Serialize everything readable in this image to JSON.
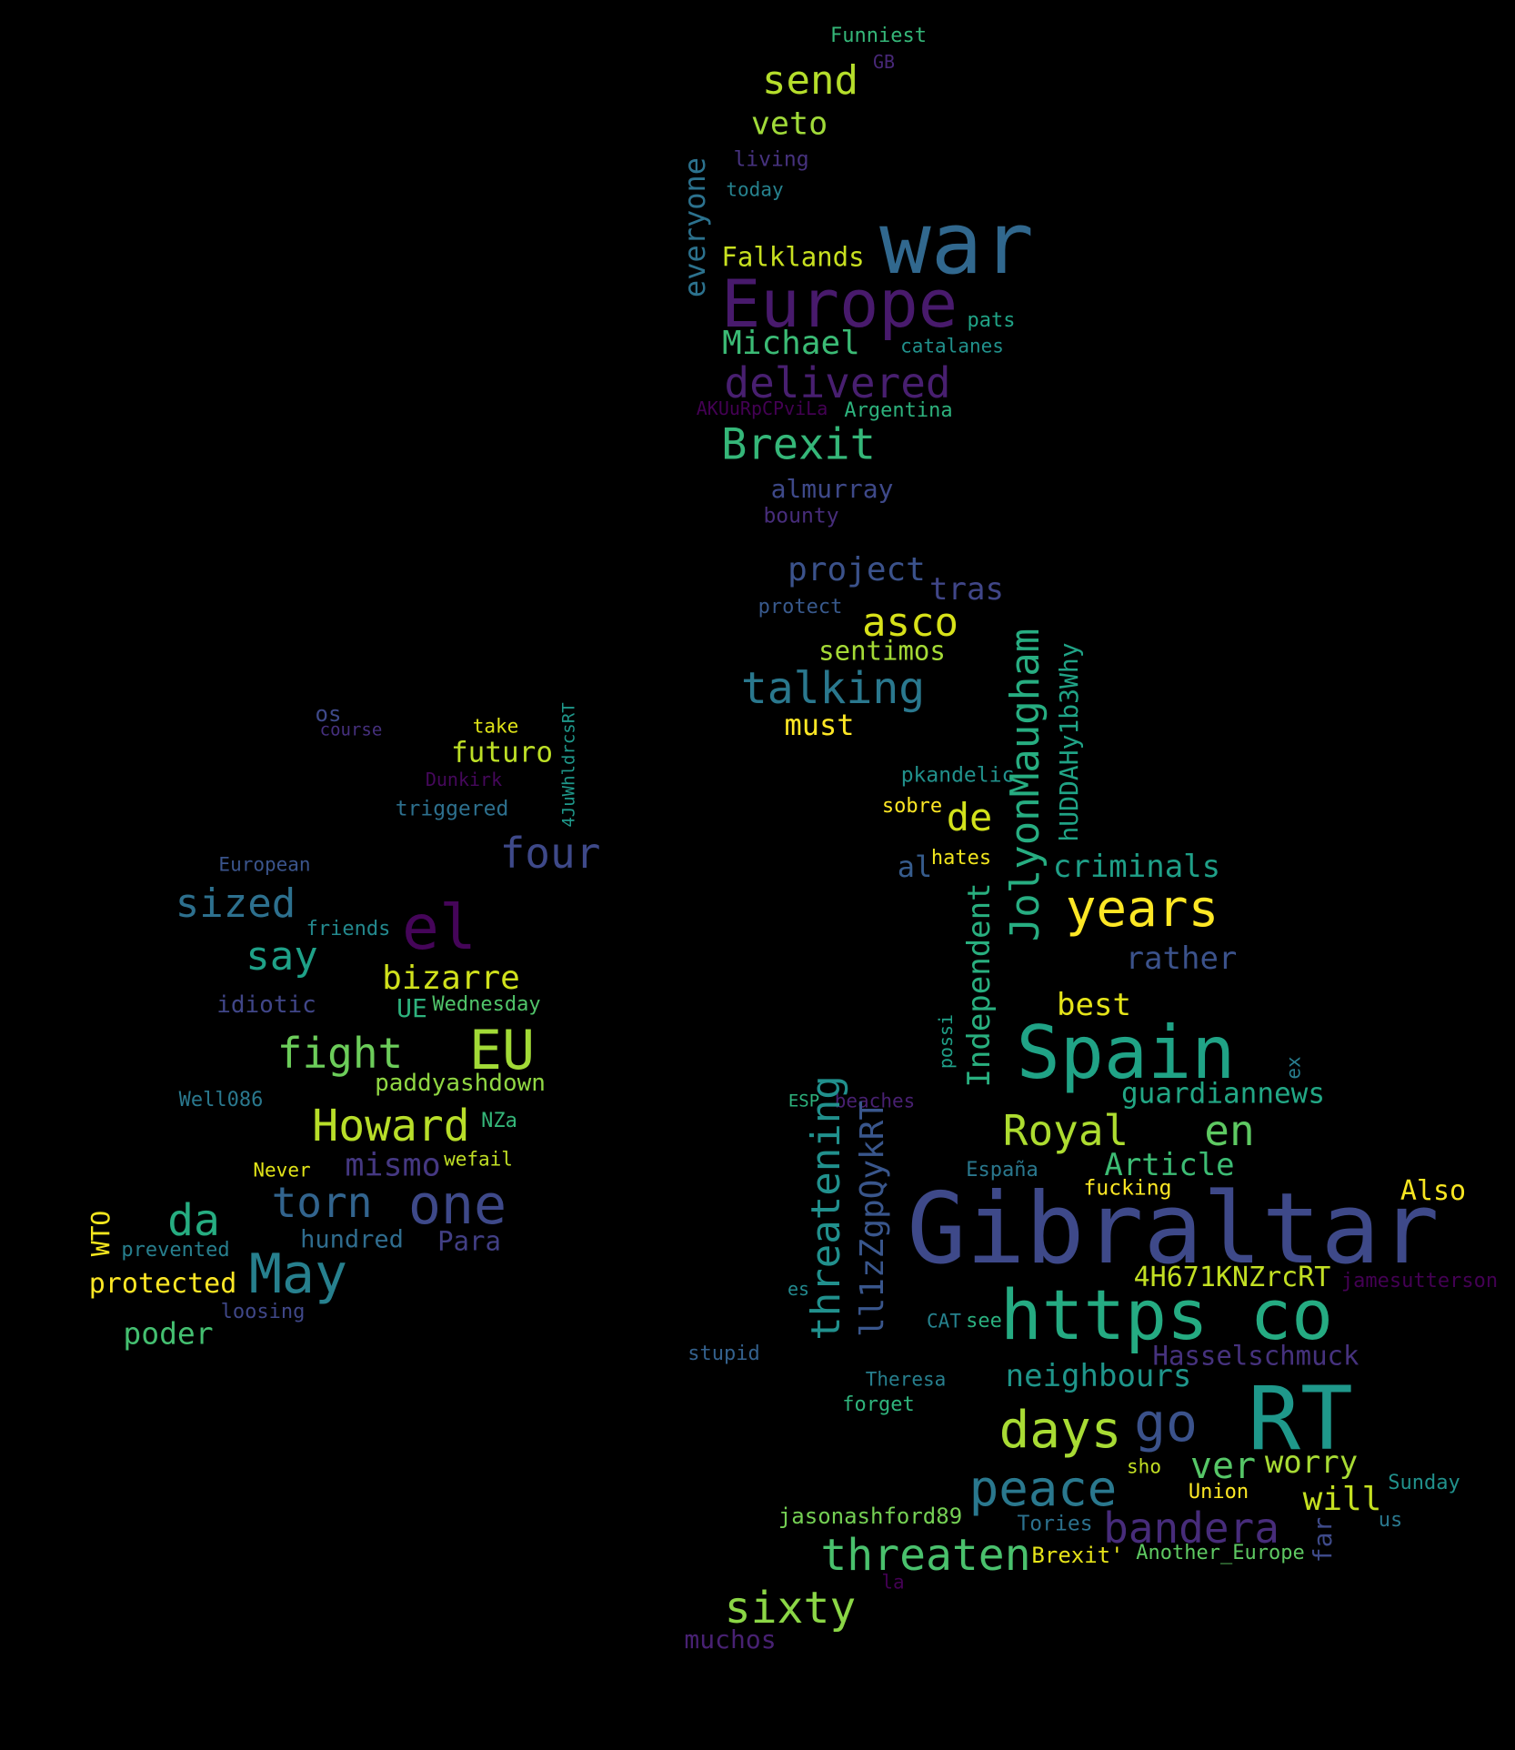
{
  "words": [
    {
      "text": "Funniest",
      "color": "#35b779"
    },
    {
      "text": "GB",
      "color": "#482878"
    },
    {
      "text": "send",
      "color": "#b5de2b"
    },
    {
      "text": "veto",
      "color": "#a0da39"
    },
    {
      "text": "living",
      "color": "#46327e"
    },
    {
      "text": "everyone",
      "color": "#2c728e"
    },
    {
      "text": "today",
      "color": "#26828e"
    },
    {
      "text": "war",
      "color": "#31688e"
    },
    {
      "text": "Falklands",
      "color": "#c8e020"
    },
    {
      "text": "Europe",
      "color": "#481a6c"
    },
    {
      "text": "pats",
      "color": "#20a386"
    },
    {
      "text": "Michael",
      "color": "#3bbb75"
    },
    {
      "text": "catalanes",
      "color": "#21918c"
    },
    {
      "text": "delivered",
      "color": "#481f70"
    },
    {
      "text": "AKUuRpCPviLa",
      "color": "#440154"
    },
    {
      "text": "Argentina",
      "color": "#2db27d"
    },
    {
      "text": "Brexit",
      "color": "#35b779"
    },
    {
      "text": "almurray",
      "color": "#3e4989"
    },
    {
      "text": "bounty",
      "color": "#472d7b"
    },
    {
      "text": "project",
      "color": "#3b528b"
    },
    {
      "text": "tras",
      "color": "#404688"
    },
    {
      "text": "protect",
      "color": "#38598c"
    },
    {
      "text": "asco",
      "color": "#d8e219"
    },
    {
      "text": "sentimos",
      "color": "#a5db36"
    },
    {
      "text": "hUDDAHy1b3Why",
      "color": "#20a386"
    },
    {
      "text": "talking",
      "color": "#2a788e"
    },
    {
      "text": "JolyonMaugham",
      "color": "#27ad81"
    },
    {
      "text": "must",
      "color": "#fde725"
    },
    {
      "text": "os",
      "color": "#3e4989"
    },
    {
      "text": "take",
      "color": "#dfe318"
    },
    {
      "text": "4JuWhldrcsRT",
      "color": "#1f988b"
    },
    {
      "text": "course",
      "color": "#46307e"
    },
    {
      "text": "futuro",
      "color": "#bddf26"
    },
    {
      "text": "Dunkirk",
      "color": "#46085c"
    },
    {
      "text": "pkandelic",
      "color": "#21918c"
    },
    {
      "text": "triggered",
      "color": "#2d708e"
    },
    {
      "text": "sobre",
      "color": "#fde725"
    },
    {
      "text": "de",
      "color": "#d2e21b"
    },
    {
      "text": "four",
      "color": "#3e4989"
    },
    {
      "text": "hates",
      "color": "#f1e51d"
    },
    {
      "text": "al",
      "color": "#365c8d"
    },
    {
      "text": "criminals",
      "color": "#1fa088"
    },
    {
      "text": "European",
      "color": "#3a548c"
    },
    {
      "text": "sized",
      "color": "#2d708e"
    },
    {
      "text": "el",
      "color": "#450559"
    },
    {
      "text": "years",
      "color": "#fde725"
    },
    {
      "text": "friends",
      "color": "#23898e"
    },
    {
      "text": "Independent",
      "color": "#29af7f"
    },
    {
      "text": "say",
      "color": "#1fa188"
    },
    {
      "text": "rather",
      "color": "#3b528b"
    },
    {
      "text": "bizarre",
      "color": "#d0e11c"
    },
    {
      "text": "idiotic",
      "color": "#404688"
    },
    {
      "text": "UE",
      "color": "#2db27d"
    },
    {
      "text": "Wednesday",
      "color": "#50c46a"
    },
    {
      "text": "best",
      "color": "#e5e419"
    },
    {
      "text": "fight",
      "color": "#6ccd5a"
    },
    {
      "text": "EU",
      "color": "#a2da37"
    },
    {
      "text": "Spain",
      "color": "#20a386"
    },
    {
      "text": "possi",
      "color": "#1fa088"
    },
    {
      "text": "ex",
      "color": "#287d8e"
    },
    {
      "text": "paddyashdown",
      "color": "#90d743"
    },
    {
      "text": "Well086",
      "color": "#2a788e"
    },
    {
      "text": "NZa",
      "color": "#34b679"
    },
    {
      "text": "ESP",
      "color": "#2db27d"
    },
    {
      "text": "beaches",
      "color": "#482071"
    },
    {
      "text": "guardiannews",
      "color": "#22a785"
    },
    {
      "text": "Howard",
      "color": "#b8de29"
    },
    {
      "text": "Royal",
      "color": "#addc30"
    },
    {
      "text": "en",
      "color": "#5ec962"
    },
    {
      "text": "threatening",
      "color": "#21908d"
    },
    {
      "text": "ll1zZgpQykRT",
      "color": "#39568c"
    },
    {
      "text": "mismo",
      "color": "#453882"
    },
    {
      "text": "wefail",
      "color": "#c0df25"
    },
    {
      "text": "Never",
      "color": "#e2e418"
    },
    {
      "text": "Article",
      "color": "#3dbc74"
    },
    {
      "text": "España",
      "color": "#2a788e"
    },
    {
      "text": "fucking",
      "color": "#fde725"
    },
    {
      "text": "Also",
      "color": "#f8e621"
    },
    {
      "text": "torn",
      "color": "#32648e"
    },
    {
      "text": "one",
      "color": "#3e4989"
    },
    {
      "text": "da",
      "color": "#26ad81"
    },
    {
      "text": "WTO",
      "color": "#f4e61e"
    },
    {
      "text": "prevented",
      "color": "#277f8e"
    },
    {
      "text": "hundred",
      "color": "#2f6c8e"
    },
    {
      "text": "Para",
      "color": "#423f85"
    },
    {
      "text": "Gibraltar",
      "color": "#3e4989"
    },
    {
      "text": "May",
      "color": "#27808e"
    },
    {
      "text": "4H671KNZrcRT",
      "color": "#c2df23"
    },
    {
      "text": "jamesutterson",
      "color": "#440154"
    },
    {
      "text": "protected",
      "color": "#fde725"
    },
    {
      "text": "loosing",
      "color": "#3f4788"
    },
    {
      "text": "es",
      "color": "#23898e"
    },
    {
      "text": "https co",
      "color": "#25ab82"
    },
    {
      "text": "poder",
      "color": "#44bf70"
    },
    {
      "text": "CAT",
      "color": "#26828e"
    },
    {
      "text": "see",
      "color": "#2ab07f"
    },
    {
      "text": "Hasselschmuck",
      "color": "#46327e"
    },
    {
      "text": "stupid",
      "color": "#34618d"
    },
    {
      "text": "Theresa",
      "color": "#277f8e"
    },
    {
      "text": "neighbours",
      "color": "#1f968b"
    },
    {
      "text": "forget",
      "color": "#2fb47c"
    },
    {
      "text": "RT",
      "color": "#1f988b"
    },
    {
      "text": "days",
      "color": "#a8db34"
    },
    {
      "text": "go",
      "color": "#3b528b"
    },
    {
      "text": "ver",
      "color": "#56c667"
    },
    {
      "text": "worry",
      "color": "#a8db34"
    },
    {
      "text": "peace",
      "color": "#2a788e"
    },
    {
      "text": "sho",
      "color": "#c2df23"
    },
    {
      "text": "Sunday",
      "color": "#21918c"
    },
    {
      "text": "Union",
      "color": "#fde725"
    },
    {
      "text": "will",
      "color": "#c5e021"
    },
    {
      "text": "jasonashford89",
      "color": "#75d054"
    },
    {
      "text": "Tories",
      "color": "#2c718e"
    },
    {
      "text": "bandera",
      "color": "#472c7a"
    },
    {
      "text": "us",
      "color": "#2a788e"
    },
    {
      "text": "far",
      "color": "#3e4a89"
    },
    {
      "text": "threaten",
      "color": "#4ac16d"
    },
    {
      "text": "Brexit'",
      "color": "#e7e419"
    },
    {
      "text": "Another_Europe",
      "color": "#5ec962"
    },
    {
      "text": "la",
      "color": "#440154"
    },
    {
      "text": "sixty",
      "color": "#8bd646"
    },
    {
      "text": "muchos",
      "color": "#482173"
    }
  ]
}
